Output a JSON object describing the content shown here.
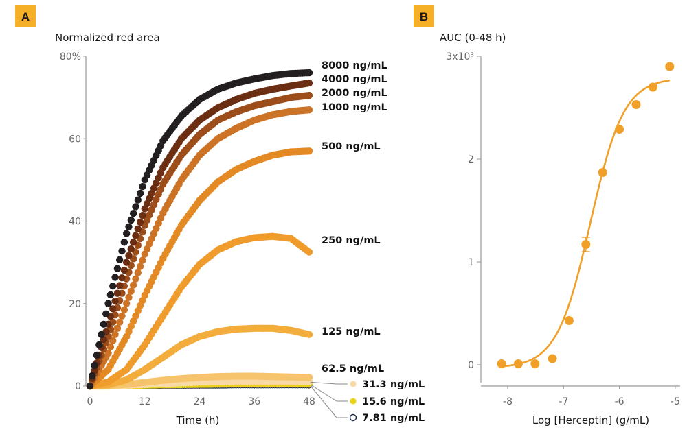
{
  "chart_data": [
    {
      "panel": "A",
      "type": "scatter",
      "title": "Normalized red area",
      "xlabel": "Time (h)",
      "ylabel": "",
      "xlim": [
        0,
        48
      ],
      "ylim": [
        0,
        80
      ],
      "x_ticks": [
        "0",
        "12",
        "24",
        "36",
        "48"
      ],
      "y_ticks": [
        "0",
        "20",
        "40",
        "60",
        "80%"
      ],
      "grid": false,
      "legend": "right of curves",
      "series": [
        {
          "name": "8000 ng/mL",
          "color": "#231f20",
          "x": [
            0,
            4,
            8,
            12,
            16,
            20,
            24,
            28,
            32,
            36,
            40,
            44,
            48
          ],
          "y": [
            0,
            20,
            37,
            50,
            59.5,
            65.5,
            69.5,
            72,
            73.5,
            74.5,
            75.3,
            75.8,
            76
          ]
        },
        {
          "name": "4000 ng/mL",
          "color": "#6b2e12",
          "x": [
            0,
            4,
            8,
            12,
            16,
            20,
            24,
            28,
            32,
            36,
            40,
            44,
            48
          ],
          "y": [
            0,
            15,
            30,
            43,
            53,
            60,
            64.5,
            67.5,
            69.5,
            71,
            72,
            72.8,
            73.5
          ]
        },
        {
          "name": "2000 ng/mL",
          "color": "#9c4d1a",
          "x": [
            0,
            4,
            8,
            12,
            16,
            20,
            24,
            28,
            32,
            36,
            40,
            44,
            48
          ],
          "y": [
            0,
            12,
            26,
            39,
            49,
            56,
            61,
            64.5,
            66.5,
            68,
            69,
            70,
            70.5
          ]
        },
        {
          "name": "1000 ng/mL",
          "color": "#cc7326",
          "x": [
            0,
            4,
            8,
            12,
            16,
            20,
            24,
            28,
            32,
            36,
            40,
            44,
            48
          ],
          "y": [
            0,
            8,
            20,
            32,
            42,
            50,
            56,
            60,
            62.5,
            64.5,
            65.8,
            66.6,
            67
          ]
        },
        {
          "name": "500 ng/mL",
          "color": "#e38a25",
          "x": [
            0,
            4,
            8,
            12,
            16,
            20,
            24,
            28,
            32,
            36,
            40,
            44,
            48
          ],
          "y": [
            0,
            4,
            12,
            22,
            31,
            39,
            45,
            49.5,
            52.5,
            54.5,
            56,
            56.8,
            57
          ]
        },
        {
          "name": "250 ng/mL",
          "color": "#ef9c2c",
          "x": [
            0,
            4,
            8,
            12,
            16,
            20,
            24,
            28,
            32,
            36,
            40,
            44,
            48
          ],
          "y": [
            0,
            1,
            4,
            10,
            17,
            24,
            29.5,
            33,
            35,
            36,
            36.3,
            35.8,
            32.5
          ]
        },
        {
          "name": "125 ng/mL",
          "color": "#f3ad3c",
          "x": [
            0,
            4,
            8,
            12,
            16,
            20,
            24,
            28,
            32,
            36,
            40,
            44,
            48
          ],
          "y": [
            0,
            0.3,
            1.5,
            4,
            7,
            10,
            12,
            13.2,
            13.8,
            14,
            14,
            13.5,
            12.5
          ]
        },
        {
          "name": "62.5 ng/mL",
          "color": "#f7c46e",
          "x": [
            0,
            4,
            8,
            12,
            16,
            20,
            24,
            28,
            32,
            36,
            40,
            44,
            48
          ],
          "y": [
            0,
            0.1,
            0.4,
            0.9,
            1.4,
            1.8,
            2.1,
            2.3,
            2.4,
            2.4,
            2.3,
            2.2,
            2.1
          ]
        },
        {
          "name": "31.3 ng/mL",
          "color": "#f9d9a6",
          "x": [
            0,
            4,
            8,
            12,
            16,
            20,
            24,
            28,
            32,
            36,
            40,
            44,
            48
          ],
          "y": [
            0,
            0.05,
            0.2,
            0.4,
            0.6,
            0.8,
            1,
            1.1,
            1.2,
            1.2,
            1.2,
            1.2,
            1.1
          ]
        },
        {
          "name": "15.6 ng/mL",
          "color": "#e8d31a",
          "x": [
            0,
            4,
            8,
            12,
            16,
            20,
            24,
            28,
            32,
            36,
            40,
            44,
            48
          ],
          "y": [
            0,
            0,
            0.1,
            0.2,
            0.3,
            0.35,
            0.4,
            0.45,
            0.5,
            0.5,
            0.5,
            0.5,
            0.5
          ]
        },
        {
          "name": "7.81 ng/mL",
          "color": "#ffffff",
          "stroke": "#1a2a4a",
          "x": [
            0,
            4,
            8,
            12,
            16,
            20,
            24,
            28,
            32,
            36,
            40,
            44,
            48
          ],
          "y": [
            0,
            0,
            0,
            0.05,
            0.1,
            0.1,
            0.15,
            0.15,
            0.2,
            0.2,
            0.2,
            0.2,
            0.2
          ]
        }
      ]
    },
    {
      "panel": "B",
      "type": "scatter",
      "title": "AUC (0-48 h)",
      "xlabel": "Log [Herceptin] (g/mL)",
      "ylabel": "",
      "xlim": [
        -8.2,
        -5
      ],
      "ylim": [
        0,
        3000
      ],
      "x_ticks": [
        "-8",
        "-7",
        "-6",
        "-5"
      ],
      "y_ticks": [
        "0",
        "1",
        "2",
        "3x10³"
      ],
      "grid": false,
      "series": [
        {
          "name": "",
          "color": "#f0a028",
          "x": [
            -8.11,
            -7.81,
            -7.51,
            -7.2,
            -6.9,
            -6.6,
            -6.3,
            -6.0,
            -5.7,
            -5.4,
            -5.1
          ],
          "y": [
            10,
            10,
            10,
            60,
            430,
            1170,
            1870,
            2290,
            2530,
            2700,
            2900
          ]
        }
      ]
    }
  ],
  "panel_a": {
    "letter": "A",
    "title": "Normalized red area",
    "xlabel": "Time (h)",
    "x_ticks": [
      "0",
      "12",
      "24",
      "36",
      "48"
    ],
    "y_ticks": [
      "0",
      "20",
      "40",
      "60",
      "80%"
    ],
    "labels": [
      "8000 ng/mL",
      "4000 ng/mL",
      "2000 ng/mL",
      "1000 ng/mL",
      "500 ng/mL",
      "250 ng/mL",
      "125 ng/mL",
      "62.5 ng/mL",
      "31.3 ng/mL",
      "15.6 ng/mL",
      "7.81 ng/mL"
    ]
  },
  "panel_b": {
    "letter": "B",
    "title": "AUC (0-48 h)",
    "xlabel": "Log [Herceptin] (g/mL)",
    "x_ticks": [
      "-8",
      "-7",
      "-6",
      "-5"
    ],
    "y_ticks": [
      "0",
      "1",
      "2",
      "3x10³"
    ]
  }
}
